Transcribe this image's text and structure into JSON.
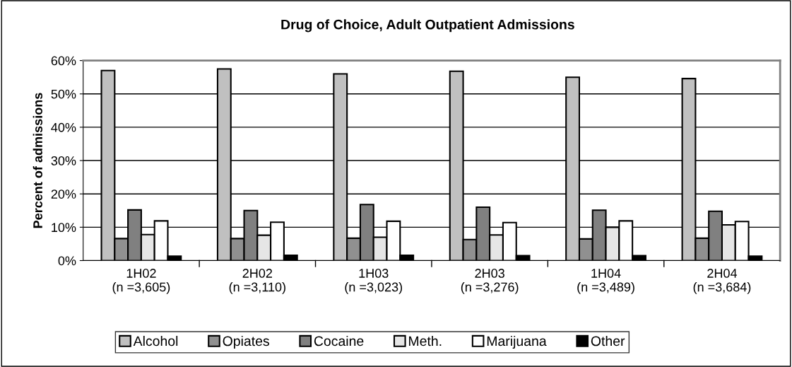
{
  "chart_data": {
    "type": "bar",
    "title": "Drug of Choice, Adult Outpatient Admissions",
    "ylabel": "Percent of admissions",
    "categories": [
      "1H02\n(n =3,605)",
      "2H02\n(n =3,110)",
      "1H03\n(n =3,023)",
      "2H03\n(n =3,276)",
      "1H04\n(n =3,489)",
      "2H04\n(n =3,684)"
    ],
    "series": [
      {
        "name": "Alcohol",
        "color": "#c0c0c0",
        "values": [
          57,
          57.5,
          56,
          56.8,
          55,
          54.6
        ]
      },
      {
        "name": "Opiates",
        "color": "#909090",
        "values": [
          6.6,
          6.6,
          6.7,
          6.3,
          6.5,
          6.7
        ]
      },
      {
        "name": "Cocaine",
        "color": "#808080",
        "values": [
          15.2,
          15,
          16.8,
          16,
          15.1,
          14.8
        ]
      },
      {
        "name": "Meth.",
        "color": "#e6e6e6",
        "values": [
          7.8,
          7.6,
          7,
          7.7,
          10,
          10.7
        ]
      },
      {
        "name": "Marijuana",
        "color": "#ffffff",
        "values": [
          11.9,
          11.5,
          11.8,
          11.4,
          11.9,
          11.7
        ]
      },
      {
        "name": "Other",
        "color": "#000000",
        "values": [
          1.3,
          1.6,
          1.6,
          1.5,
          1.5,
          1.3
        ]
      }
    ],
    "ylim": [
      0,
      60
    ],
    "yticks": [
      {
        "value": 0,
        "label": "0%"
      },
      {
        "value": 10,
        "label": "10%"
      },
      {
        "value": 20,
        "label": "20%"
      },
      {
        "value": 30,
        "label": "30%"
      },
      {
        "value": 40,
        "label": "40%"
      },
      {
        "value": 50,
        "label": "50%"
      },
      {
        "value": 60,
        "label": "60%"
      }
    ],
    "grid": "y",
    "legend": "bottom"
  }
}
